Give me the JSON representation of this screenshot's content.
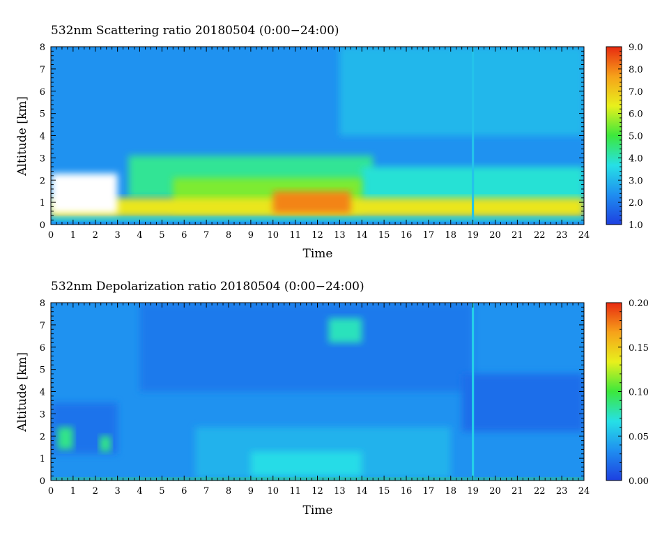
{
  "chart_data": [
    {
      "type": "heatmap",
      "title": "532nm Scattering ratio  20180504 (0:00−24:00)",
      "xlabel": "Time",
      "ylabel": "Altitude [km]",
      "xlim": [
        0,
        24
      ],
      "ylim": [
        0,
        8
      ],
      "x_ticks": [
        "0",
        "1",
        "2",
        "3",
        "4",
        "5",
        "6",
        "7",
        "8",
        "9",
        "10",
        "11",
        "12",
        "13",
        "14",
        "15",
        "16",
        "17",
        "18",
        "19",
        "20",
        "21",
        "22",
        "23",
        "24"
      ],
      "y_ticks": [
        "0",
        "1",
        "2",
        "3",
        "4",
        "5",
        "6",
        "7",
        "8"
      ],
      "colorbar": {
        "range": [
          1.0,
          9.0
        ],
        "ticks": [
          "1.0",
          "2.0",
          "3.0",
          "4.0",
          "5.0",
          "6.0",
          "7.0",
          "8.0",
          "9.0"
        ],
        "colors": [
          "#1d3fe0",
          "#1f8ef0",
          "#26e0e6",
          "#3ce83c",
          "#e8f01c",
          "#f6a21a",
          "#e82a10"
        ]
      },
      "grid": false,
      "features": [
        {
          "t0": 0.0,
          "t1": 24.0,
          "z0": 0.0,
          "z1": 8.0,
          "value": 2.4
        },
        {
          "t0": 13.0,
          "t1": 24.0,
          "z0": 4.0,
          "z1": 8.0,
          "value": 3.0
        },
        {
          "t0": 3.5,
          "t1": 14.5,
          "z0": 1.2,
          "z1": 3.1,
          "value": 4.3
        },
        {
          "t0": 14.0,
          "t1": 24.0,
          "z0": 1.0,
          "z1": 2.6,
          "value": 3.8
        },
        {
          "t0": 5.5,
          "t1": 14.0,
          "z0": 0.6,
          "z1": 2.1,
          "value": 5.5
        },
        {
          "t0": 0.0,
          "t1": 24.0,
          "z0": 0.35,
          "z1": 1.2,
          "value": 6.5
        },
        {
          "t0": 10.0,
          "t1": 13.5,
          "z0": 0.5,
          "z1": 1.5,
          "value": 8.0
        },
        {
          "t0": 0.0,
          "t1": 24.0,
          "z0": 0.15,
          "z1": 0.35,
          "value": 3.8
        },
        {
          "t0": 0.0,
          "t1": 3.0,
          "z0": 0.5,
          "z1": 2.3,
          "value": null
        },
        {
          "t0": 18.95,
          "t1": 19.05,
          "z0": 0.0,
          "z1": 8.0,
          "value": 3.2
        }
      ]
    },
    {
      "type": "heatmap",
      "title": "532nm Depolarization ratio  20180504 (0:00−24:00)",
      "xlabel": "Time",
      "ylabel": "Altitude [km]",
      "xlim": [
        0,
        24
      ],
      "ylim": [
        0,
        8
      ],
      "x_ticks": [
        "0",
        "1",
        "2",
        "3",
        "4",
        "5",
        "6",
        "7",
        "8",
        "9",
        "10",
        "11",
        "12",
        "13",
        "14",
        "15",
        "16",
        "17",
        "18",
        "19",
        "20",
        "21",
        "22",
        "23",
        "24"
      ],
      "y_ticks": [
        "0",
        "1",
        "2",
        "3",
        "4",
        "5",
        "6",
        "7",
        "8"
      ],
      "colorbar": {
        "range": [
          0.0,
          0.2
        ],
        "ticks": [
          "0.00",
          "0.05",
          "0.10",
          "0.15",
          "0.20"
        ],
        "colors": [
          "#1d3fe0",
          "#1f8ef0",
          "#26e0e6",
          "#3ce83c",
          "#e8f01c",
          "#f6a21a",
          "#e82a10"
        ]
      },
      "grid": false,
      "features": [
        {
          "t0": 0.0,
          "t1": 24.0,
          "z0": 0.0,
          "z1": 8.0,
          "value": 0.035
        },
        {
          "t0": 4.0,
          "t1": 19.0,
          "z0": 4.0,
          "z1": 8.0,
          "value": 0.025
        },
        {
          "t0": 18.5,
          "t1": 24.0,
          "z0": 2.2,
          "z1": 4.8,
          "value": 0.02
        },
        {
          "t0": 0.0,
          "t1": 3.0,
          "z0": 1.2,
          "z1": 3.5,
          "value": 0.022
        },
        {
          "t0": 6.5,
          "t1": 18.0,
          "z0": 0.1,
          "z1": 2.4,
          "value": 0.048
        },
        {
          "t0": 9.0,
          "t1": 14.0,
          "z0": 0.2,
          "z1": 1.3,
          "value": 0.065
        },
        {
          "t0": 12.5,
          "t1": 14.0,
          "z0": 6.2,
          "z1": 7.3,
          "value": 0.075
        },
        {
          "t0": 0.0,
          "t1": 24.0,
          "z0": 0.0,
          "z1": 0.12,
          "value": 0.1
        },
        {
          "t0": 0.3,
          "t1": 1.0,
          "z0": 1.4,
          "z1": 2.4,
          "value": 0.085
        },
        {
          "t0": 2.2,
          "t1": 2.7,
          "z0": 1.3,
          "z1": 2.0,
          "value": 0.085
        },
        {
          "t0": 18.95,
          "t1": 19.05,
          "z0": 0.0,
          "z1": 8.0,
          "value": 0.06
        }
      ]
    }
  ]
}
